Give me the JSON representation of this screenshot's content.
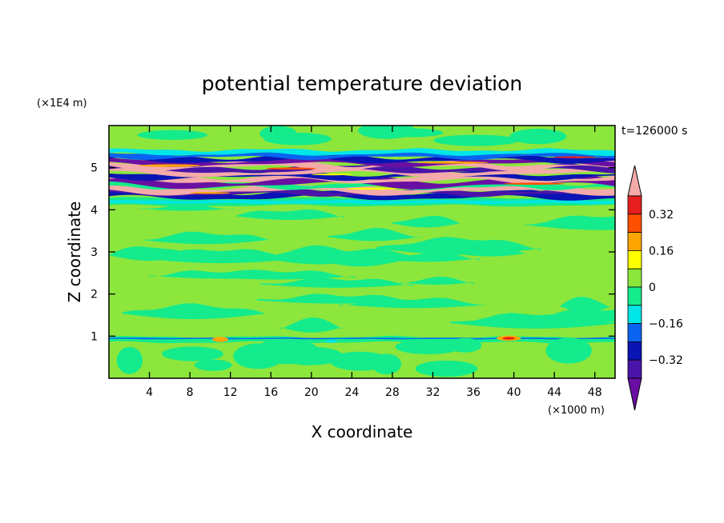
{
  "chart_data": {
    "type": "heatmap",
    "title": "potential temperature deviation",
    "xlabel": "X coordinate",
    "ylabel": "Z coordinate",
    "x_unit": "(×1000 m)",
    "y_unit": "(×1E4 m)",
    "time_label": "t=126000 s",
    "xlim": [
      0,
      50
    ],
    "ylim": [
      0,
      6
    ],
    "x_ticks": [
      4,
      8,
      12,
      16,
      20,
      24,
      28,
      32,
      36,
      40,
      44,
      48
    ],
    "y_ticks": [
      1,
      2,
      3,
      4,
      5
    ],
    "colorbar": {
      "levels": [
        -0.4,
        -0.32,
        -0.24,
        -0.16,
        -0.08,
        0,
        0.08,
        0.16,
        0.24,
        0.32,
        0.4
      ],
      "tick_values": [
        0.32,
        0.16,
        0,
        -0.16,
        -0.32
      ],
      "tick_labels": [
        "0.32",
        "0.16",
        "0",
        "−0.16",
        "−0.32"
      ],
      "colors": [
        "#6a0fa3",
        "#4b14a8",
        "#0a14b4",
        "#0a64f0",
        "#00e6e6",
        "#14eb8c",
        "#8ce63c",
        "#ffff00",
        "#ffa500",
        "#ff5000",
        "#e61e1e",
        "#f5aaaa"
      ],
      "extend": "both"
    }
  }
}
